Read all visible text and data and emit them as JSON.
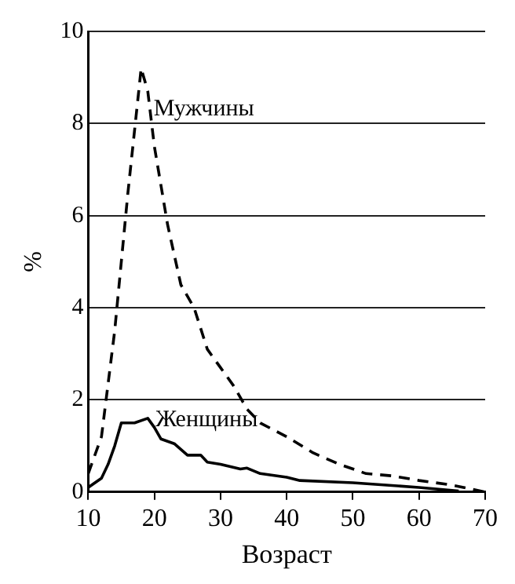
{
  "chart_data": {
    "type": "line",
    "xlabel": "Возраст",
    "ylabel": "%",
    "xlim": [
      10,
      70
    ],
    "xticks": [
      10,
      20,
      30,
      40,
      50,
      60,
      70
    ],
    "ylim": [
      0,
      10
    ],
    "yticks": [
      0,
      2,
      4,
      6,
      8,
      10
    ],
    "grid": "y",
    "marker": "none",
    "legend": false,
    "series": [
      {
        "name": "Мужчины",
        "color": "#000000",
        "line_style": "dashed",
        "x": [
          10,
          12,
          14,
          16,
          18,
          19,
          20,
          22,
          24,
          26,
          28,
          30,
          32,
          34,
          36,
          40,
          44,
          48,
          52,
          56,
          60,
          65,
          70
        ],
        "values": [
          0.4,
          1.2,
          3.5,
          6.5,
          9.2,
          8.7,
          7.5,
          5.8,
          4.5,
          4.0,
          3.1,
          2.7,
          2.3,
          1.8,
          1.5,
          1.2,
          0.85,
          0.6,
          0.4,
          0.35,
          0.25,
          0.15,
          0.0
        ]
      },
      {
        "name": "Женщины",
        "color": "#000000",
        "line_style": "solid",
        "x": [
          10,
          12,
          13,
          14,
          15,
          17,
          19,
          20,
          21,
          23,
          25,
          27,
          28,
          30,
          33,
          34,
          36,
          40,
          42,
          50,
          60,
          66
        ],
        "values": [
          0.1,
          0.3,
          0.6,
          1.0,
          1.5,
          1.5,
          1.6,
          1.4,
          1.15,
          1.05,
          0.8,
          0.8,
          0.65,
          0.6,
          0.5,
          0.52,
          0.4,
          0.32,
          0.25,
          0.2,
          0.1,
          0.02
        ]
      }
    ]
  }
}
